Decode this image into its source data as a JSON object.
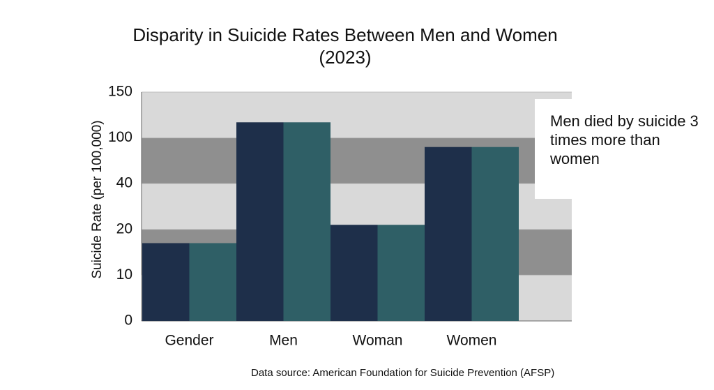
{
  "chart_data": {
    "type": "bar",
    "title": "Disparity in Suicide Rates Between Men and Women (2023)",
    "y_label": "Suicide Rate (per 100,000)",
    "categories": [
      "Gender",
      "Men",
      "Woman",
      "Women"
    ],
    "series": [
      {
        "color": "#1e2f4a",
        "values": [
          17,
          117,
          22,
          88
        ]
      },
      {
        "color": "#2f5f66",
        "values": [
          17,
          117,
          22,
          88
        ]
      }
    ],
    "ylim": [
      0,
      150
    ],
    "yticks": [
      0,
      10,
      20,
      40,
      100,
      150
    ],
    "grid": true,
    "annotation": "Men died by suicide 3 times more than women",
    "source": "Data source:  American Foundation for Suicide Prevention (AFSP)"
  }
}
